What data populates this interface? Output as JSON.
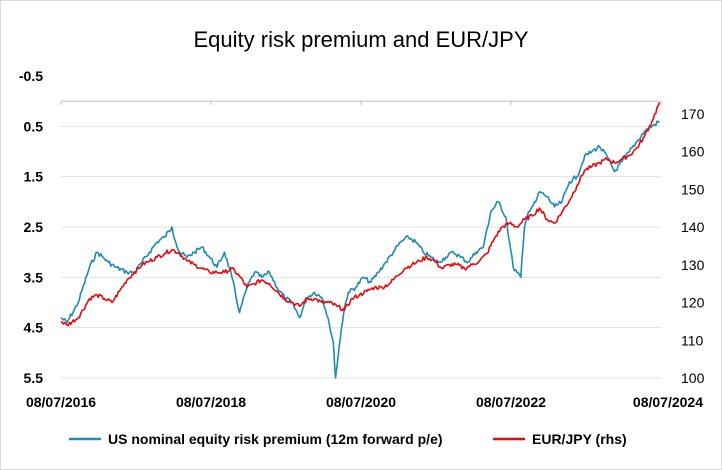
{
  "chart_data": {
    "type": "line",
    "title": "Equity risk premium and EUR/JPY",
    "x_ticks": [
      "08/07/2016",
      "08/07/2018",
      "08/07/2020",
      "08/07/2022",
      "08/07/2024"
    ],
    "x_range": [
      2016.52,
      2024.52
    ],
    "y_left": {
      "range": [
        -0.5,
        5.5
      ],
      "inverted": true,
      "ticks": [
        -0.5,
        0.5,
        1.5,
        2.5,
        3.5,
        4.5,
        5.5
      ],
      "tick_labels": [
        "-0.5",
        "0.5",
        "1.5",
        "2.5",
        "3.5",
        "4.5",
        "5.5"
      ]
    },
    "y_right": {
      "range": [
        100,
        180
      ],
      "ticks": [
        100,
        110,
        120,
        130,
        140,
        150,
        160,
        170
      ],
      "tick_labels": [
        "100",
        "110",
        "120",
        "130",
        "140",
        "150",
        "160",
        "170"
      ]
    },
    "grid": true,
    "legend_position": "bottom",
    "series": [
      {
        "name": "US nominal equity risk premium (12m forward p/e)",
        "axis": "left",
        "color": "#1f8ab4",
        "x": [
          2016.52,
          2016.6,
          2016.75,
          2016.9,
          2017.0,
          2017.08,
          2017.15,
          2017.25,
          2017.4,
          2017.5,
          2017.6,
          2017.7,
          2017.8,
          2017.9,
          2018.0,
          2018.05,
          2018.1,
          2018.2,
          2018.3,
          2018.4,
          2018.5,
          2018.6,
          2018.7,
          2018.8,
          2018.9,
          2019.0,
          2019.1,
          2019.2,
          2019.3,
          2019.4,
          2019.5,
          2019.6,
          2019.7,
          2019.8,
          2019.9,
          2020.0,
          2020.08,
          2020.15,
          2020.18,
          2020.22,
          2020.26,
          2020.3,
          2020.35,
          2020.45,
          2020.55,
          2020.65,
          2020.75,
          2020.85,
          2020.95,
          2021.05,
          2021.15,
          2021.25,
          2021.35,
          2021.45,
          2021.55,
          2021.65,
          2021.75,
          2021.85,
          2021.95,
          2022.05,
          2022.15,
          2022.25,
          2022.35,
          2022.45,
          2022.5,
          2022.55,
          2022.6,
          2022.65,
          2022.7,
          2022.75,
          2022.8,
          2022.85,
          2022.9,
          2023.0,
          2023.1,
          2023.2,
          2023.3,
          2023.4,
          2023.5,
          2023.6,
          2023.7,
          2023.8,
          2023.9,
          2024.0,
          2024.1,
          2024.2,
          2024.3,
          2024.4,
          2024.5
        ],
        "values": [
          4.3,
          4.4,
          4.0,
          3.3,
          3.0,
          3.1,
          3.2,
          3.3,
          3.4,
          3.4,
          3.2,
          3.0,
          2.8,
          2.7,
          2.5,
          2.8,
          3.0,
          3.1,
          3.0,
          2.9,
          3.1,
          3.3,
          3.0,
          3.5,
          4.2,
          3.7,
          3.4,
          3.5,
          3.4,
          3.7,
          3.9,
          4.0,
          4.3,
          3.9,
          3.8,
          3.9,
          4.3,
          4.8,
          5.5,
          5.0,
          4.5,
          4.1,
          3.8,
          3.7,
          3.5,
          3.6,
          3.4,
          3.2,
          3.0,
          2.8,
          2.7,
          2.8,
          3.0,
          3.1,
          3.2,
          3.1,
          3.0,
          3.1,
          3.2,
          3.0,
          2.9,
          2.2,
          2.0,
          2.3,
          2.8,
          3.3,
          3.4,
          3.5,
          2.5,
          2.2,
          2.1,
          2.0,
          1.8,
          1.9,
          2.1,
          2.0,
          1.6,
          1.5,
          1.1,
          1.0,
          0.9,
          1.1,
          1.4,
          1.2,
          1.0,
          0.8,
          0.6,
          0.5,
          0.4
        ]
      },
      {
        "name": "EUR/JPY (rhs)",
        "axis": "right",
        "color": "#e8090f",
        "x": [
          2016.52,
          2016.6,
          2016.75,
          2016.9,
          2017.0,
          2017.1,
          2017.2,
          2017.3,
          2017.4,
          2017.5,
          2017.6,
          2017.7,
          2017.8,
          2017.9,
          2018.0,
          2018.1,
          2018.2,
          2018.3,
          2018.4,
          2018.5,
          2018.6,
          2018.7,
          2018.8,
          2018.9,
          2019.0,
          2019.1,
          2019.2,
          2019.3,
          2019.4,
          2019.5,
          2019.6,
          2019.7,
          2019.8,
          2019.9,
          2020.0,
          2020.1,
          2020.2,
          2020.3,
          2020.4,
          2020.5,
          2020.6,
          2020.7,
          2020.8,
          2020.9,
          2021.0,
          2021.1,
          2021.2,
          2021.3,
          2021.4,
          2021.5,
          2021.6,
          2021.7,
          2021.8,
          2021.9,
          2022.0,
          2022.1,
          2022.2,
          2022.3,
          2022.4,
          2022.5,
          2022.6,
          2022.7,
          2022.8,
          2022.9,
          2023.0,
          2023.1,
          2023.2,
          2023.3,
          2023.4,
          2023.5,
          2023.6,
          2023.7,
          2023.8,
          2023.9,
          2024.0,
          2024.1,
          2024.2,
          2024.3,
          2024.4,
          2024.5
        ],
        "values": [
          115,
          114,
          116,
          121,
          122,
          121,
          120,
          123,
          126,
          128,
          130,
          131,
          132,
          133,
          134,
          133,
          131,
          130,
          129,
          128,
          128,
          128,
          129,
          127,
          124,
          125,
          126,
          125,
          123,
          121,
          120,
          119,
          121,
          121,
          120,
          120,
          119,
          118,
          121,
          122,
          123,
          124,
          124,
          125,
          127,
          129,
          130,
          131,
          132,
          131,
          129,
          130,
          130,
          129,
          130,
          131,
          133,
          137,
          140,
          141,
          140,
          142,
          143,
          145,
          142,
          141,
          144,
          147,
          151,
          155,
          156,
          157,
          158,
          157,
          158,
          159,
          161,
          164,
          168,
          173
        ]
      }
    ]
  }
}
